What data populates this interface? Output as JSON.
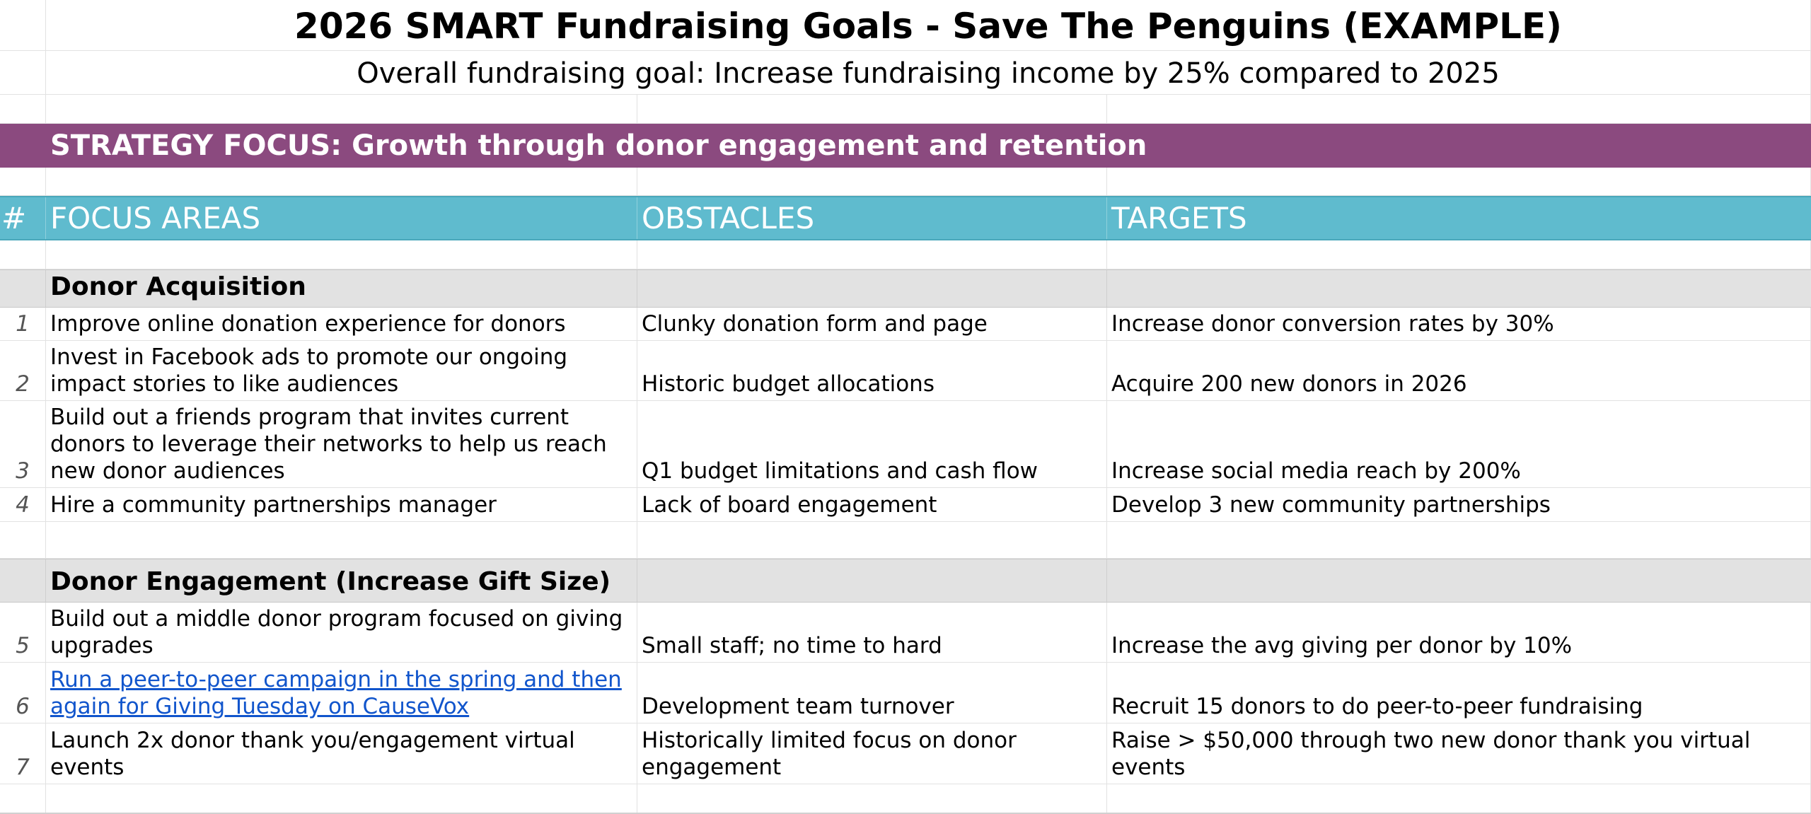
{
  "title": "2026 SMART Fundraising Goals - Save The Penguins (EXAMPLE)",
  "subtitle": "Overall fundraising goal: Increase fundraising income by 25% compared to 2025",
  "strategy": "STRATEGY FOCUS: Growth through donor engagement and retention",
  "headers": {
    "num": "#",
    "focus": "FOCUS AREAS",
    "obstacles": "OBSTACLES",
    "targets": "TARGETS"
  },
  "sections": [
    {
      "label": "Donor Acquisition"
    },
    {
      "label": "Donor Engagement (Increase Gift Size)"
    }
  ],
  "rows": [
    {
      "num": "1",
      "focus": "Improve online donation experience for donors",
      "obstacle": "Clunky donation form and page",
      "target": "Increase donor conversion rates by 30%"
    },
    {
      "num": "2",
      "focus": "Invest in Facebook ads to promote our ongoing impact stories to like audiences",
      "obstacle": "Historic budget allocations",
      "target": "Acquire 200 new donors in 2026"
    },
    {
      "num": "3",
      "focus": "Build out a friends program that invites current donors to leverage their networks to help us reach new donor audiences",
      "obstacle": "Q1 budget limitations and cash flow",
      "target": "Increase social media reach by 200%"
    },
    {
      "num": "4",
      "focus": "Hire a community partnerships manager",
      "obstacle": "Lack of board engagement",
      "target": "Develop 3 new community partnerships"
    },
    {
      "num": "5",
      "focus": "Build out a middle donor program focused on giving upgrades",
      "obstacle": "Small staff; no time to hard",
      "target": "Increase the avg giving per donor by 10%"
    },
    {
      "num": "6",
      "focus": "Run a peer-to-peer campaign in the spring and then again for Giving Tuesday on CauseVox",
      "obstacle": "Development team turnover",
      "target": "Recruit 15 donors to do peer-to-peer fundraising"
    },
    {
      "num": "7",
      "focus": "Launch 2x donor thank you/engagement virtual events",
      "obstacle": "Historically limited focus on donor engagement",
      "target": "Raise > $50,000 through two new donor thank you virtual events"
    }
  ]
}
